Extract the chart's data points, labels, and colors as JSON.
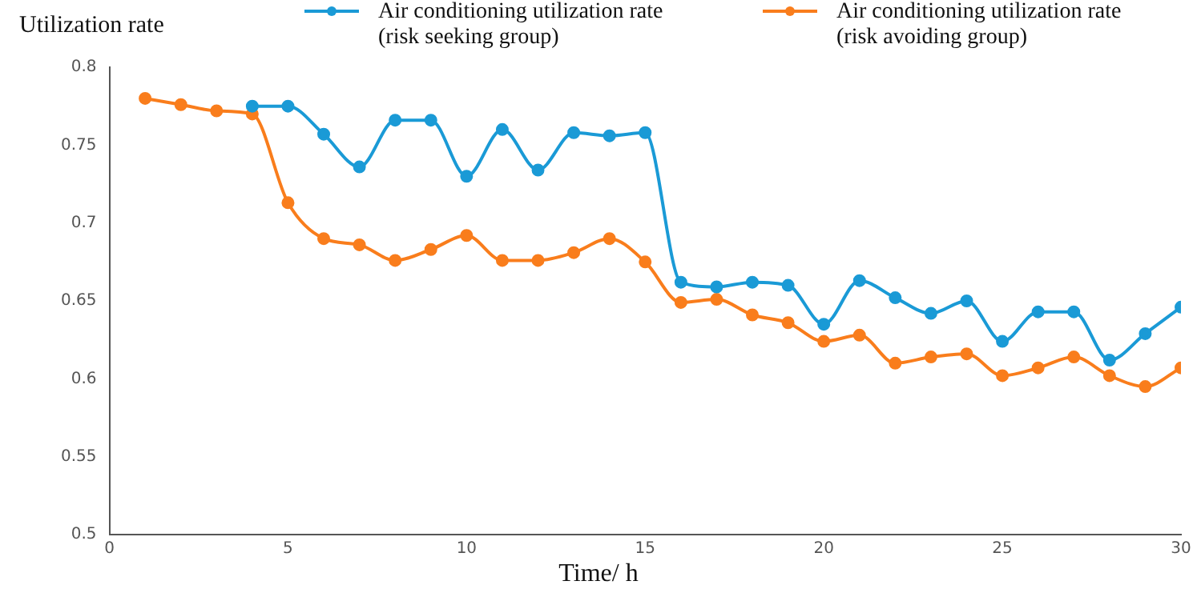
{
  "chart_data": {
    "type": "line",
    "xlabel": "Time/ h",
    "ylabel": "Utilization rate",
    "xlim": [
      0,
      30
    ],
    "xticks": [
      0,
      5,
      10,
      15,
      20,
      25,
      30
    ],
    "ylim": [
      0.5,
      0.8
    ],
    "yticks": [
      0.5,
      0.55,
      0.6,
      0.65,
      0.7,
      0.75,
      0.8
    ],
    "grid": false,
    "legend": "top",
    "marker": "circle",
    "line_style": "solid",
    "series": [
      {
        "name": "Air conditioning utilization rate (risk seeking group)",
        "color": "#1a9ad6",
        "x": [
          4,
          5,
          6,
          7,
          8,
          9,
          10,
          11,
          12,
          13,
          14,
          15,
          16,
          17,
          18,
          19,
          20,
          21,
          22,
          23,
          24,
          25,
          26,
          27,
          28,
          29,
          30
        ],
        "values": [
          0.775,
          0.775,
          0.757,
          0.736,
          0.766,
          0.766,
          0.73,
          0.76,
          0.734,
          0.758,
          0.756,
          0.758,
          0.662,
          0.659,
          0.662,
          0.66,
          0.635,
          0.663,
          0.652,
          0.642,
          0.65,
          0.624,
          0.643,
          0.643,
          0.612,
          0.629,
          0.646
        ]
      },
      {
        "name": "Air conditioning utilization rate (risk avoiding group)",
        "color": "#f97d1c",
        "x": [
          1,
          2,
          3,
          4,
          5,
          6,
          7,
          8,
          9,
          10,
          11,
          12,
          13,
          14,
          15,
          16,
          17,
          18,
          19,
          20,
          21,
          22,
          23,
          24,
          25,
          26,
          27,
          28,
          29,
          30
        ],
        "values": [
          0.78,
          0.776,
          0.772,
          0.77,
          0.713,
          0.69,
          0.686,
          0.676,
          0.683,
          0.692,
          0.676,
          0.676,
          0.681,
          0.69,
          0.675,
          0.649,
          0.651,
          0.641,
          0.636,
          0.624,
          0.628,
          0.61,
          0.614,
          0.616,
          0.602,
          0.607,
          0.614,
          0.602,
          0.595,
          0.607
        ]
      }
    ]
  }
}
